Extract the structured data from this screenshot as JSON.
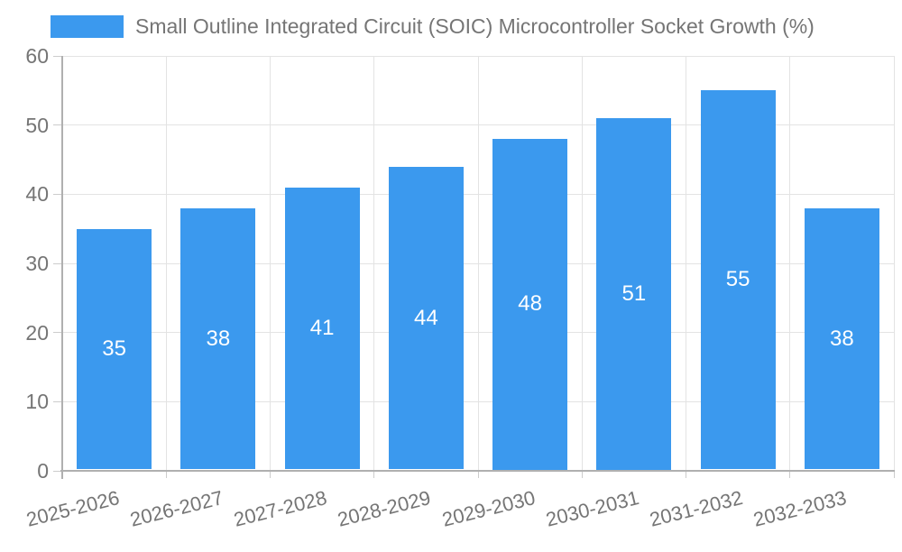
{
  "legend": {
    "label": "Small Outline Integrated Circuit (SOIC) Microcontroller Socket Growth (%)"
  },
  "chart_data": {
    "type": "bar",
    "title": "",
    "categories": [
      "2025-2026",
      "2026-2027",
      "2027-2028",
      "2028-2029",
      "2029-2030",
      "2030-2031",
      "2031-2032",
      "2032-2033"
    ],
    "values": [
      35,
      38,
      41,
      44,
      48,
      51,
      55,
      38
    ],
    "series_name": "Small Outline Integrated Circuit (SOIC) Microcontroller Socket Growth (%)",
    "xlabel": "",
    "ylabel": "",
    "ylim": [
      0,
      60
    ],
    "ytick_step": 10,
    "yticks": [
      0,
      10,
      20,
      30,
      40,
      50,
      60
    ],
    "grid": true,
    "legend_position": "top-left",
    "x_label_rotation_deg": -14,
    "value_labels": "inside-center",
    "colors": {
      "bar": "#3b99ee",
      "value_label": "#ffffff",
      "axis_text": "#757575",
      "grid_line": "#e3e3e3",
      "tick_mark": "#cccccc",
      "axis_line": "#b0b0b0",
      "background": "#ffffff"
    }
  }
}
